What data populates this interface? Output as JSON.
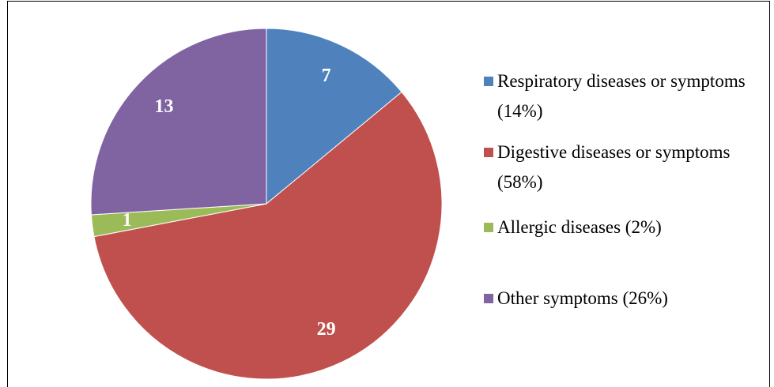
{
  "chart_data": {
    "type": "pie",
    "categories": [
      "Respiratory diseases or symptoms (14%)",
      "Digestive diseases or symptoms (58%)",
      "Allergic diseases (2%)",
      "Other symptoms (26%)"
    ],
    "values": [
      7,
      29,
      1,
      13
    ],
    "colors": [
      "#4f81bd",
      "#c0504d",
      "#9bbb59",
      "#8064a2"
    ],
    "legend": "right"
  }
}
